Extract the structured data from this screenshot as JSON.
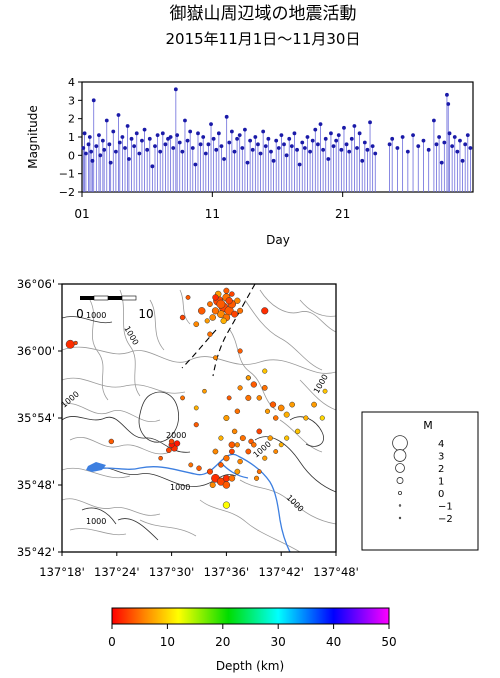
{
  "header": {
    "title": "御嶽山周辺域の地震活動",
    "subtitle": "2015年11月1日～11月30日"
  },
  "chart_data": [
    {
      "type": "stem",
      "ylabel": "Magnitude",
      "xlabel": "Day",
      "x_ticks": [
        "01",
        "11",
        "21"
      ],
      "x_tick_days": [
        1,
        11,
        21
      ],
      "xlim": [
        1,
        31
      ],
      "y_ticks": [
        "4",
        "3",
        "2",
        "1",
        "0",
        "−1",
        "−2"
      ],
      "ylim": [
        -2,
        4
      ],
      "stem_color": "#1a1aa8",
      "points": [
        [
          1.1,
          0.4
        ],
        [
          1.2,
          1.2
        ],
        [
          1.3,
          0.1
        ],
        [
          1.5,
          0.6
        ],
        [
          1.6,
          1.0
        ],
        [
          1.7,
          0.2
        ],
        [
          1.8,
          -0.3
        ],
        [
          1.9,
          3.0
        ],
        [
          2.1,
          0.5
        ],
        [
          2.3,
          1.1
        ],
        [
          2.4,
          0.0
        ],
        [
          2.6,
          0.8
        ],
        [
          2.7,
          0.3
        ],
        [
          2.9,
          1.9
        ],
        [
          3.1,
          0.6
        ],
        [
          3.2,
          -0.4
        ],
        [
          3.4,
          1.3
        ],
        [
          3.6,
          0.2
        ],
        [
          3.8,
          2.2
        ],
        [
          3.9,
          0.7
        ],
        [
          4.1,
          1.0
        ],
        [
          4.3,
          0.4
        ],
        [
          4.5,
          1.6
        ],
        [
          4.6,
          -0.2
        ],
        [
          4.8,
          0.9
        ],
        [
          5.0,
          0.5
        ],
        [
          5.2,
          1.2
        ],
        [
          5.4,
          0.1
        ],
        [
          5.6,
          0.8
        ],
        [
          5.8,
          1.4
        ],
        [
          6.0,
          0.3
        ],
        [
          6.2,
          0.9
        ],
        [
          6.4,
          -0.6
        ],
        [
          6.6,
          0.5
        ],
        [
          6.8,
          1.1
        ],
        [
          7.0,
          0.2
        ],
        [
          7.2,
          1.2
        ],
        [
          7.4,
          0.6
        ],
        [
          7.6,
          0.9
        ],
        [
          7.8,
          1.0
        ],
        [
          8.0,
          0.4
        ],
        [
          8.2,
          3.6
        ],
        [
          8.3,
          1.1
        ],
        [
          8.5,
          0.7
        ],
        [
          8.7,
          0.2
        ],
        [
          8.9,
          1.9
        ],
        [
          9.1,
          0.8
        ],
        [
          9.3,
          1.3
        ],
        [
          9.5,
          0.4
        ],
        [
          9.7,
          -0.5
        ],
        [
          9.9,
          1.2
        ],
        [
          10.1,
          0.6
        ],
        [
          10.3,
          1.0
        ],
        [
          10.5,
          0.1
        ],
        [
          10.7,
          0.6
        ],
        [
          10.9,
          1.7
        ],
        [
          11.1,
          0.9
        ],
        [
          11.3,
          0.3
        ],
        [
          11.5,
          1.2
        ],
        [
          11.7,
          0.5
        ],
        [
          11.9,
          -0.2
        ],
        [
          12.1,
          2.1
        ],
        [
          12.3,
          0.7
        ],
        [
          12.5,
          1.3
        ],
        [
          12.7,
          0.2
        ],
        [
          12.9,
          0.9
        ],
        [
          13.1,
          1.1
        ],
        [
          13.3,
          0.4
        ],
        [
          13.5,
          1.4
        ],
        [
          13.7,
          -0.4
        ],
        [
          13.9,
          0.8
        ],
        [
          14.1,
          0.3
        ],
        [
          14.3,
          1.0
        ],
        [
          14.5,
          0.6
        ],
        [
          14.7,
          0.1
        ],
        [
          14.9,
          1.3
        ],
        [
          15.1,
          0.5
        ],
        [
          15.3,
          0.9
        ],
        [
          15.5,
          0.2
        ],
        [
          15.7,
          -0.3
        ],
        [
          15.9,
          0.8
        ],
        [
          16.1,
          0.4
        ],
        [
          16.3,
          1.1
        ],
        [
          16.5,
          0.6
        ],
        [
          16.7,
          0.0
        ],
        [
          16.9,
          0.9
        ],
        [
          17.1,
          0.5
        ],
        [
          17.3,
          1.2
        ],
        [
          17.5,
          0.3
        ],
        [
          17.7,
          -0.5
        ],
        [
          17.9,
          0.7
        ],
        [
          18.1,
          0.4
        ],
        [
          18.3,
          1.0
        ],
        [
          18.5,
          0.2
        ],
        [
          18.7,
          0.8
        ],
        [
          18.9,
          1.4
        ],
        [
          19.1,
          0.6
        ],
        [
          19.3,
          1.7
        ],
        [
          19.5,
          0.3
        ],
        [
          19.7,
          0.9
        ],
        [
          19.9,
          -0.2
        ],
        [
          20.1,
          1.2
        ],
        [
          20.3,
          0.5
        ],
        [
          20.5,
          0.8
        ],
        [
          20.7,
          1.1
        ],
        [
          20.9,
          0.3
        ],
        [
          21.1,
          1.5
        ],
        [
          21.3,
          0.6
        ],
        [
          21.5,
          0.2
        ],
        [
          21.7,
          0.9
        ],
        [
          21.9,
          1.6
        ],
        [
          22.1,
          0.4
        ],
        [
          22.3,
          1.2
        ],
        [
          22.5,
          -0.3
        ],
        [
          22.7,
          0.7
        ],
        [
          22.9,
          0.3
        ],
        [
          23.1,
          1.8
        ],
        [
          23.3,
          0.5
        ],
        [
          23.5,
          0.1
        ],
        [
          24.6,
          0.6
        ],
        [
          24.8,
          0.9
        ],
        [
          25.2,
          0.4
        ],
        [
          25.6,
          1.0
        ],
        [
          26.0,
          0.2
        ],
        [
          26.4,
          1.1
        ],
        [
          26.8,
          0.5
        ],
        [
          27.2,
          0.8
        ],
        [
          27.6,
          0.3
        ],
        [
          28.0,
          1.9
        ],
        [
          28.2,
          0.6
        ],
        [
          28.4,
          1.0
        ],
        [
          28.6,
          -0.4
        ],
        [
          28.8,
          0.7
        ],
        [
          29.0,
          3.3
        ],
        [
          29.1,
          2.8
        ],
        [
          29.2,
          1.2
        ],
        [
          29.4,
          0.5
        ],
        [
          29.6,
          1.0
        ],
        [
          29.8,
          0.2
        ],
        [
          30.0,
          0.8
        ],
        [
          30.2,
          -0.3
        ],
        [
          30.4,
          0.6
        ],
        [
          30.6,
          1.1
        ],
        [
          30.8,
          0.4
        ]
      ]
    },
    {
      "type": "map",
      "lat_ticks": [
        "36°06'",
        "36°00'",
        "35°54'",
        "35°48'",
        "35°42'"
      ],
      "lon_ticks": [
        "137°18'",
        "137°24'",
        "137°30'",
        "137°36'",
        "137°42'",
        "137°48'"
      ],
      "lon_range": [
        137.3,
        137.8
      ],
      "lat_range": [
        35.7,
        36.1
      ],
      "scalebar_labels": [
        "0",
        "10"
      ],
      "contour_labels": [
        "1000",
        "1000",
        "2000",
        "1000",
        "1000",
        "1000",
        "1000",
        "1000",
        "1000"
      ],
      "legend_title": "M",
      "legend_magnitudes": [
        "4",
        "3",
        "2",
        "1",
        "0",
        "−1",
        "−2"
      ],
      "legend_mag_values": [
        4,
        3,
        2,
        1,
        0,
        -1,
        -2
      ],
      "colorbar_label": "Depth (km)",
      "colorbar_ticks": [
        "0",
        "10",
        "20",
        "30",
        "40",
        "50"
      ],
      "depth_range": [
        0,
        50
      ],
      "colormap": [
        "#ff0000",
        "#ff8800",
        "#ffff00",
        "#00dd00",
        "#00ffff",
        "#0000ff",
        "#ff00ff"
      ],
      "events": [
        [
          137.585,
          36.075,
          2.2,
          3
        ],
        [
          137.59,
          36.07,
          1.8,
          4
        ],
        [
          137.595,
          36.065,
          2.0,
          3
        ],
        [
          137.6,
          36.08,
          1.5,
          5
        ],
        [
          137.605,
          36.06,
          1.9,
          4
        ],
        [
          137.59,
          36.055,
          1.4,
          6
        ],
        [
          137.58,
          36.06,
          1.2,
          5
        ],
        [
          137.61,
          36.07,
          1.6,
          4
        ],
        [
          137.575,
          36.05,
          1.0,
          6
        ],
        [
          137.6,
          36.05,
          1.3,
          5
        ],
        [
          137.615,
          36.055,
          1.1,
          3
        ],
        [
          137.585,
          36.085,
          1.0,
          7
        ],
        [
          137.62,
          36.075,
          0.9,
          6
        ],
        [
          137.6,
          36.09,
          0.8,
          4
        ],
        [
          137.57,
          36.07,
          0.7,
          5
        ],
        [
          137.61,
          36.085,
          0.6,
          3
        ],
        [
          137.595,
          36.045,
          0.9,
          8
        ],
        [
          137.625,
          36.06,
          0.8,
          5
        ],
        [
          137.58,
          36.08,
          0.9,
          2
        ],
        [
          137.605,
          36.075,
          1.2,
          3
        ],
        [
          137.555,
          36.06,
          1.3,
          4
        ],
        [
          137.545,
          36.04,
          0.7,
          6
        ],
        [
          137.57,
          36.025,
          0.6,
          5
        ],
        [
          137.565,
          36.045,
          0.5,
          7
        ],
        [
          137.52,
          36.05,
          0.6,
          3
        ],
        [
          137.53,
          36.08,
          0.4,
          4
        ],
        [
          137.625,
          36.0,
          0.5,
          4
        ],
        [
          137.58,
          35.99,
          0.4,
          6
        ],
        [
          137.67,
          36.06,
          1.2,
          2
        ],
        [
          137.315,
          36.01,
          1.8,
          2
        ],
        [
          137.325,
          36.012,
          0.2,
          3
        ],
        [
          137.39,
          35.865,
          0.6,
          4
        ],
        [
          137.5,
          35.86,
          0.8,
          1
        ],
        [
          137.505,
          35.855,
          1.1,
          2
        ],
        [
          137.495,
          35.852,
          0.7,
          3
        ],
        [
          137.51,
          35.862,
          0.9,
          1
        ],
        [
          137.5,
          35.865,
          0.6,
          3
        ],
        [
          137.48,
          35.84,
          0.3,
          4
        ],
        [
          137.545,
          35.89,
          0.5,
          4
        ],
        [
          137.52,
          35.93,
          0.4,
          5
        ],
        [
          137.545,
          35.915,
          0.4,
          8
        ],
        [
          137.56,
          35.94,
          0.3,
          7
        ],
        [
          137.55,
          35.825,
          0.6,
          4
        ],
        [
          137.535,
          35.83,
          0.4,
          5
        ],
        [
          137.57,
          35.82,
          0.8,
          3
        ],
        [
          137.59,
          35.83,
          0.6,
          4
        ],
        [
          137.6,
          35.84,
          0.9,
          5
        ],
        [
          137.58,
          35.85,
          0.7,
          6
        ],
        [
          137.61,
          35.86,
          1.0,
          4
        ],
        [
          137.59,
          35.87,
          0.5,
          8
        ],
        [
          137.615,
          35.88,
          0.6,
          6
        ],
        [
          137.6,
          35.9,
          0.8,
          7
        ],
        [
          137.62,
          35.91,
          0.6,
          5
        ],
        [
          137.605,
          35.93,
          0.4,
          4
        ],
        [
          137.625,
          35.945,
          0.5,
          6
        ],
        [
          137.64,
          35.93,
          0.8,
          5
        ],
        [
          137.65,
          35.95,
          0.9,
          4
        ],
        [
          137.66,
          35.93,
          0.6,
          6
        ],
        [
          137.67,
          35.945,
          0.7,
          5
        ],
        [
          137.64,
          35.96,
          0.5,
          8
        ],
        [
          137.675,
          35.91,
          0.5,
          7
        ],
        [
          137.685,
          35.92,
          0.9,
          4
        ],
        [
          137.69,
          35.9,
          0.6,
          5
        ],
        [
          137.7,
          35.915,
          1.0,
          6
        ],
        [
          137.71,
          35.905,
          0.8,
          8
        ],
        [
          137.72,
          35.92,
          0.7,
          7
        ],
        [
          137.73,
          35.88,
          0.6,
          9
        ],
        [
          137.745,
          35.9,
          0.5,
          8
        ],
        [
          137.76,
          35.92,
          0.7,
          7
        ],
        [
          137.775,
          35.9,
          0.5,
          10
        ],
        [
          137.78,
          35.94,
          0.4,
          9
        ],
        [
          137.66,
          35.88,
          0.7,
          3
        ],
        [
          137.645,
          35.865,
          0.6,
          4
        ],
        [
          137.63,
          35.87,
          0.8,
          5
        ],
        [
          137.62,
          35.86,
          0.5,
          6
        ],
        [
          137.61,
          35.85,
          0.7,
          3
        ],
        [
          137.6,
          35.81,
          1.2,
          2
        ],
        [
          137.59,
          35.805,
          1.5,
          3
        ],
        [
          137.58,
          35.81,
          1.7,
          2
        ],
        [
          137.6,
          35.8,
          1.3,
          4
        ],
        [
          137.61,
          35.81,
          1.0,
          5
        ],
        [
          137.575,
          35.8,
          0.8,
          6
        ],
        [
          137.62,
          35.82,
          0.7,
          7
        ],
        [
          137.625,
          35.835,
          0.6,
          6
        ],
        [
          137.64,
          35.85,
          0.7,
          4
        ],
        [
          137.65,
          35.86,
          0.6,
          5
        ],
        [
          137.68,
          35.87,
          0.6,
          7
        ],
        [
          137.69,
          35.85,
          0.4,
          6
        ],
        [
          137.71,
          35.87,
          0.5,
          9
        ],
        [
          137.7,
          35.86,
          0.4,
          8
        ],
        [
          137.67,
          35.84,
          0.5,
          7
        ],
        [
          137.66,
          35.82,
          0.4,
          5
        ],
        [
          137.655,
          35.81,
          0.5,
          6
        ],
        [
          137.6,
          35.77,
          1.2,
          12
        ],
        [
          137.64,
          35.96,
          0.4,
          7
        ],
        [
          137.67,
          35.97,
          0.5,
          9
        ]
      ]
    }
  ]
}
